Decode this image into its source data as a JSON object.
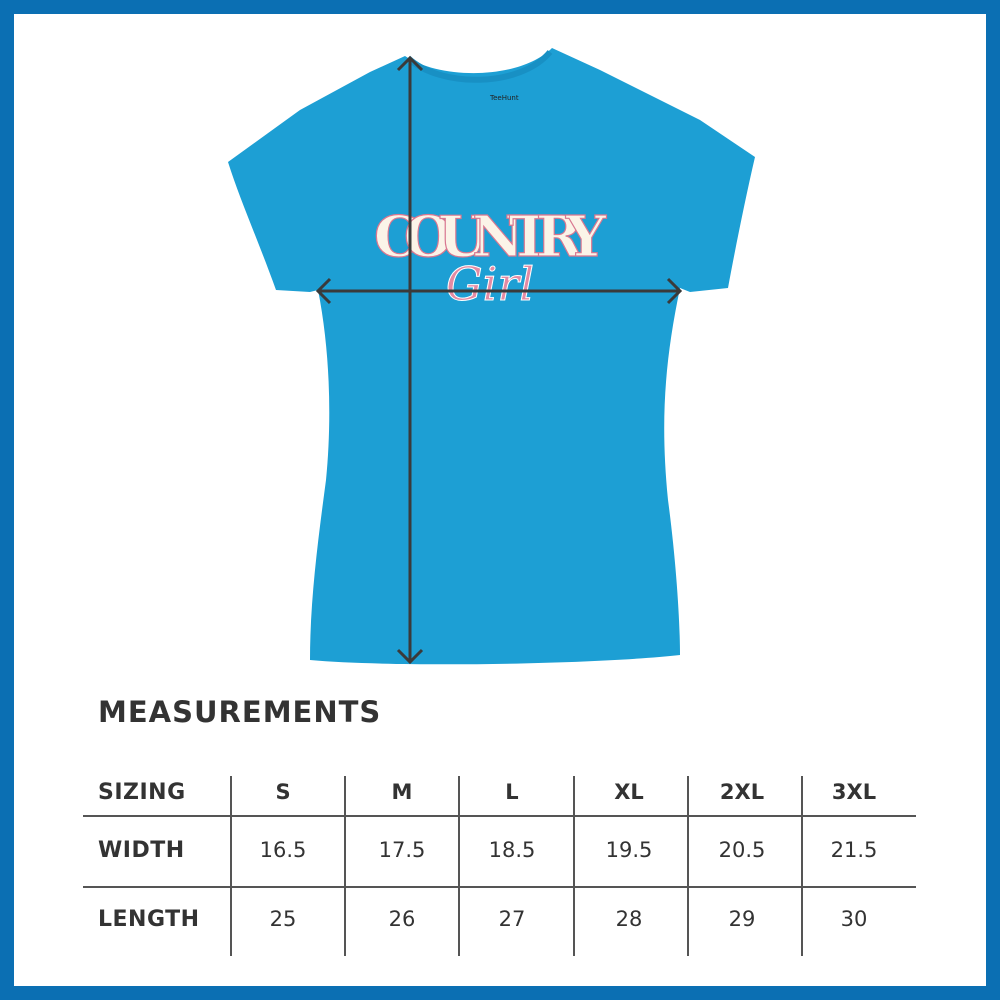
{
  "shirt": {
    "color": "#1d9fd4",
    "print_main": "COUNTRY",
    "print_script": "Girl",
    "tag_brand": "TeeHunt"
  },
  "measurements": {
    "title": "MEASUREMENTS",
    "header_label": "SIZING",
    "sizes": [
      "S",
      "M",
      "L",
      "XL",
      "2XL",
      "3XL"
    ],
    "rows": [
      {
        "label": "WIDTH",
        "values": [
          "16.5",
          "17.5",
          "18.5",
          "19.5",
          "20.5",
          "21.5"
        ]
      },
      {
        "label": "LENGTH",
        "values": [
          "25",
          "26",
          "27",
          "28",
          "29",
          "30"
        ]
      }
    ]
  },
  "colors": {
    "border": "#0b6fb3",
    "text": "#333333",
    "arrow": "#3a3a3a"
  }
}
